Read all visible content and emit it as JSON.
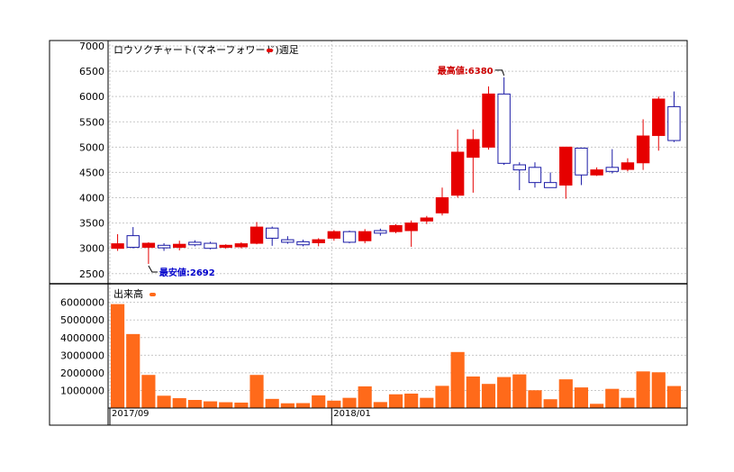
{
  "chart_data": [
    {
      "type": "candlestick",
      "title": "ロウソクチャート(マネーフォワード)週足",
      "legend_color": "#e60000",
      "colors": {
        "up": "#e60000",
        "down_fill": "#ffffff",
        "down_stroke": "#1a1aa6",
        "annotation_high": "#cc0000",
        "annotation_low": "#0000cc"
      },
      "ylim": [
        2300,
        7000
      ],
      "yticks": [
        "2500",
        "3000",
        "3500",
        "4000",
        "4500",
        "5000",
        "5500",
        "6000",
        "6500",
        "7000"
      ],
      "candles": [
        {
          "o": 3000,
          "h": 3280,
          "l": 2950,
          "c": 3090
        },
        {
          "o": 3250,
          "h": 3420,
          "l": 3000,
          "c": 3020
        },
        {
          "o": 3020,
          "h": 3120,
          "l": 2692,
          "c": 3100
        },
        {
          "o": 3060,
          "h": 3100,
          "l": 2950,
          "c": 3010
        },
        {
          "o": 3020,
          "h": 3150,
          "l": 2960,
          "c": 3080
        },
        {
          "o": 3120,
          "h": 3160,
          "l": 3040,
          "c": 3070
        },
        {
          "o": 3100,
          "h": 3130,
          "l": 2980,
          "c": 3000
        },
        {
          "o": 3020,
          "h": 3080,
          "l": 2990,
          "c": 3060
        },
        {
          "o": 3030,
          "h": 3120,
          "l": 3000,
          "c": 3090
        },
        {
          "o": 3100,
          "h": 3520,
          "l": 3080,
          "c": 3420
        },
        {
          "o": 3400,
          "h": 3430,
          "l": 3050,
          "c": 3200
        },
        {
          "o": 3170,
          "h": 3240,
          "l": 3090,
          "c": 3120
        },
        {
          "o": 3130,
          "h": 3170,
          "l": 3040,
          "c": 3070
        },
        {
          "o": 3110,
          "h": 3200,
          "l": 3040,
          "c": 3170
        },
        {
          "o": 3200,
          "h": 3360,
          "l": 3150,
          "c": 3330
        },
        {
          "o": 3330,
          "h": 3350,
          "l": 3100,
          "c": 3120
        },
        {
          "o": 3150,
          "h": 3380,
          "l": 3100,
          "c": 3330
        },
        {
          "o": 3350,
          "h": 3390,
          "l": 3250,
          "c": 3300
        },
        {
          "o": 3330,
          "h": 3480,
          "l": 3300,
          "c": 3450
        },
        {
          "o": 3350,
          "h": 3550,
          "l": 3030,
          "c": 3500
        },
        {
          "o": 3540,
          "h": 3640,
          "l": 3480,
          "c": 3600
        },
        {
          "o": 3700,
          "h": 4200,
          "l": 3650,
          "c": 4000
        },
        {
          "o": 4050,
          "h": 5350,
          "l": 4000,
          "c": 4900
        },
        {
          "o": 4800,
          "h": 5350,
          "l": 4100,
          "c": 5150
        },
        {
          "o": 5000,
          "h": 6200,
          "l": 4950,
          "c": 6050
        },
        {
          "o": 6050,
          "h": 6380,
          "l": 4650,
          "c": 4680
        },
        {
          "o": 4650,
          "h": 4700,
          "l": 4150,
          "c": 4550
        },
        {
          "o": 4600,
          "h": 4700,
          "l": 4200,
          "c": 4300
        },
        {
          "o": 4300,
          "h": 4500,
          "l": 4200,
          "c": 4200
        },
        {
          "o": 4250,
          "h": 5000,
          "l": 3980,
          "c": 5000
        },
        {
          "o": 4980,
          "h": 4990,
          "l": 4250,
          "c": 4450
        },
        {
          "o": 4450,
          "h": 4600,
          "l": 4430,
          "c": 4550
        },
        {
          "o": 4600,
          "h": 4960,
          "l": 4480,
          "c": 4520
        },
        {
          "o": 4560,
          "h": 4780,
          "l": 4520,
          "c": 4690
        },
        {
          "o": 4690,
          "h": 5550,
          "l": 4550,
          "c": 5220
        },
        {
          "o": 5230,
          "h": 6000,
          "l": 4930,
          "c": 5950
        },
        {
          "o": 5800,
          "h": 6100,
          "l": 5100,
          "c": 5130
        }
      ],
      "annotations": [
        {
          "label": "最高値:6380",
          "index": 25,
          "value": 6380,
          "kind": "high"
        },
        {
          "label": "最安値:2692",
          "index": 2,
          "value": 2692,
          "kind": "low"
        }
      ]
    },
    {
      "type": "bar",
      "title": "出来高",
      "legend_color": "#ff6a1a",
      "bar_color": "#ff6a1a",
      "ylim": [
        0,
        6800000
      ],
      "yticks": [
        "1000000",
        "2000000",
        "3000000",
        "4000000",
        "5000000",
        "6000000"
      ],
      "values": [
        5900000,
        4200000,
        1880000,
        700000,
        560000,
        460000,
        380000,
        330000,
        310000,
        1880000,
        520000,
        270000,
        280000,
        720000,
        420000,
        580000,
        1230000,
        340000,
        780000,
        820000,
        580000,
        1260000,
        3180000,
        1790000,
        1370000,
        1760000,
        1910000,
        1010000,
        500000,
        1630000,
        1170000,
        240000,
        1090000,
        580000,
        2080000,
        2030000,
        1250000
      ],
      "x_labels": [
        {
          "text": "2017/09",
          "index": 0
        },
        {
          "text": "2018/01",
          "index": 14
        }
      ]
    }
  ]
}
